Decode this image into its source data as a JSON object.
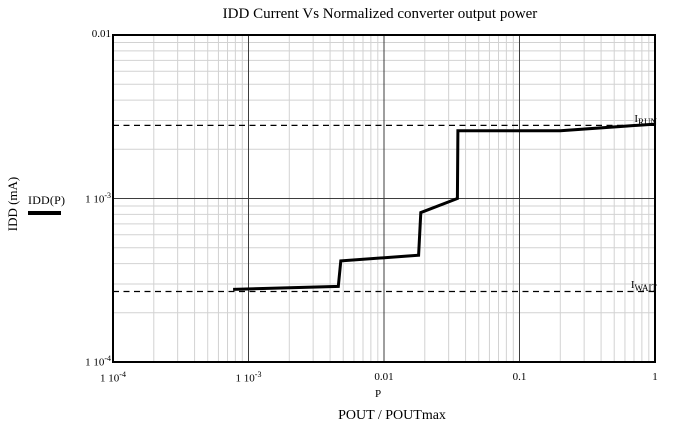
{
  "chart_data": {
    "type": "line",
    "title": "IDD Current Vs Normalized converter output power",
    "ylabel": "IDD (mA)",
    "xlabel": "POUT / POUTmax",
    "x_trace_label": "P",
    "x_scale": "log",
    "y_scale": "log",
    "xlim": [
      0.0001,
      1
    ],
    "ylim": [
      0.0001,
      0.01
    ],
    "grid": {
      "minor_color": "#d2d2d2",
      "major_color": "#3d3d3d",
      "border_color": "#000000",
      "minor_on": true
    },
    "x_ticks": [
      {
        "mantissa": "1 10",
        "exp": "-4",
        "value": 0.0001
      },
      {
        "mantissa": "1 10",
        "exp": "-3",
        "value": 0.001
      },
      {
        "mantissa": "0.01",
        "exp": "",
        "value": 0.01
      },
      {
        "mantissa": "0.1",
        "exp": "",
        "value": 0.1
      },
      {
        "mantissa": "1",
        "exp": "",
        "value": 1
      }
    ],
    "y_ticks": [
      {
        "mantissa": "0.01",
        "exp": "",
        "value": 0.01
      },
      {
        "mantissa": "1 10",
        "exp": "-3",
        "value": 0.001
      },
      {
        "mantissa": "1 10",
        "exp": "-4",
        "value": 0.0001
      }
    ],
    "legend": {
      "label": "IDD(P)"
    },
    "series": [
      {
        "name": "IDD(P)",
        "color": "#000000",
        "width": 3,
        "points": [
          [
            0.00077,
            0.000278
          ],
          [
            0.0046,
            0.00029
          ],
          [
            0.0048,
            0.000415
          ],
          [
            0.018,
            0.00045
          ],
          [
            0.0187,
            0.00082
          ],
          [
            0.0348,
            0.001
          ],
          [
            0.0351,
            0.0026
          ],
          [
            0.2,
            0.0026
          ],
          [
            1.0,
            0.00285
          ]
        ]
      }
    ],
    "reference_lines": [
      {
        "name": "I_RUN",
        "base": "I",
        "sub": "RUN",
        "y": 0.0028,
        "style": "dashed",
        "color": "#000000"
      },
      {
        "name": "I_WAIT",
        "base": "I",
        "sub": "WAIT",
        "y": 0.00027,
        "style": "dashed",
        "color": "#000000"
      }
    ]
  }
}
